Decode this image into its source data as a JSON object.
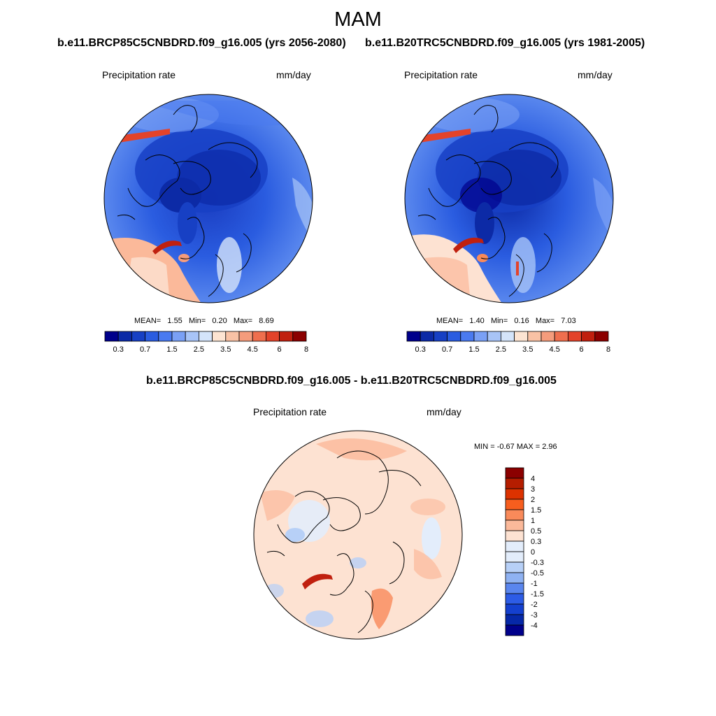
{
  "title": "MAM",
  "panel_left": {
    "case_title": "b.e11.BRCP85C5CNBDRD.f09_g16.005 (yrs 2056-2080)",
    "variable": "Precipitation rate",
    "units": "mm/day",
    "stats": {
      "mean_label": "MEAN=",
      "mean": "1.55",
      "min_label": "Min=",
      "min": "0.20",
      "max_label": "Max=",
      "max": "8.69"
    },
    "colorbar_ticks": [
      "0.3",
      "0.7",
      "1.5",
      "2.5",
      "3.5",
      "4.5",
      "6",
      "8"
    ]
  },
  "panel_right": {
    "case_title": "b.e11.B20TRC5CNBDRD.f09_g16.005 (yrs 1981-2005)",
    "variable": "Precipitation rate",
    "units": "mm/day",
    "stats": {
      "mean_label": "MEAN=",
      "mean": "1.40",
      "min_label": "Min=",
      "min": "0.16",
      "max_label": "Max=",
      "max": "7.03"
    },
    "colorbar_ticks": [
      "0.3",
      "0.7",
      "1.5",
      "2.5",
      "3.5",
      "4.5",
      "6",
      "8"
    ]
  },
  "panel_diff": {
    "case_title": "b.e11.BRCP85C5CNBDRD.f09_g16.005 - b.e11.B20TRC5CNBDRD.f09_g16.005",
    "variable": "Precipitation rate",
    "units": "mm/day",
    "minmax": "MIN =  -0.67 MAX =   2.96",
    "colorbar_ticks": [
      "4",
      "3",
      "2",
      "1.5",
      "1",
      "0.5",
      "0.3",
      "0",
      "-0.3",
      "-0.5",
      "-1",
      "-1.5",
      "-2",
      "-3",
      "-4"
    ]
  },
  "colors": {
    "abs_scale": [
      "#00008b",
      "#0c2aa6",
      "#1740c4",
      "#2a5ce0",
      "#4a7af0",
      "#7aa0f5",
      "#a8c4f7",
      "#d4e4fa",
      "#fde4d2",
      "#f9c2a5",
      "#f59c7c",
      "#ef6f4e",
      "#e3432a",
      "#c0200f",
      "#8b0000"
    ],
    "diff_scale": [
      "#8b0000",
      "#b51d00",
      "#dc3200",
      "#f75e1e",
      "#f98a5a",
      "#fbb99a",
      "#fde2d2",
      "#e3edfb",
      "#b7d0f7",
      "#8fb2f2",
      "#5a86ee",
      "#2d5ce6",
      "#1440cf",
      "#0628a8",
      "#00008b"
    ]
  }
}
